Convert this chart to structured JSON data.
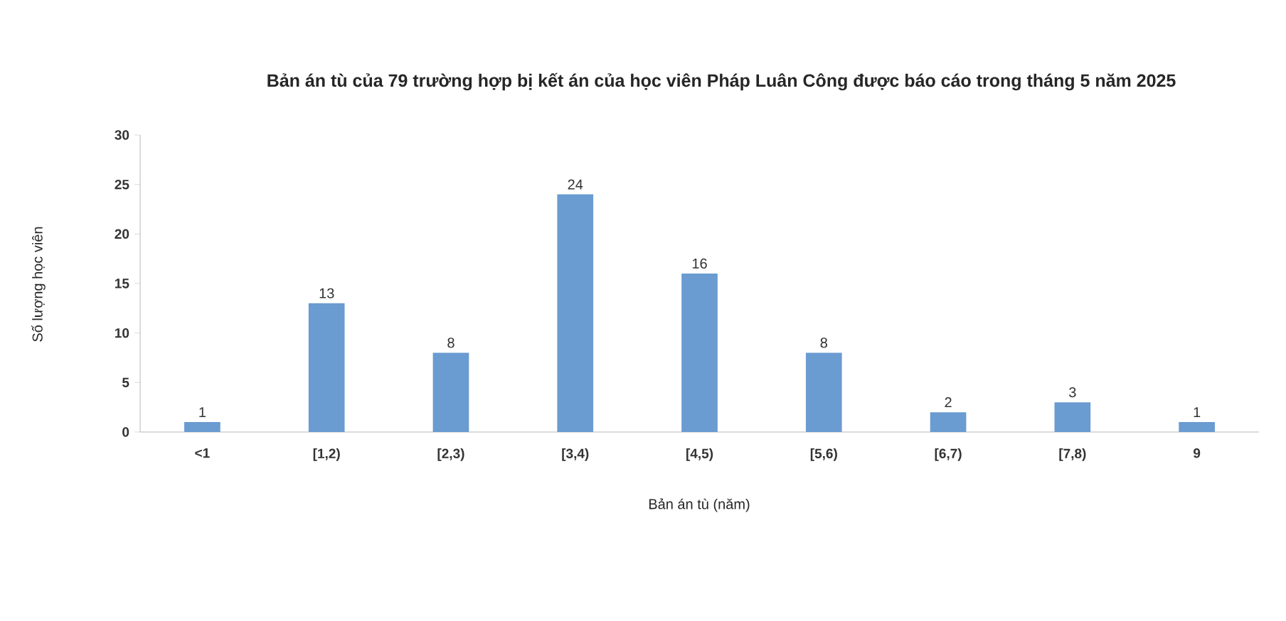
{
  "chart_data": {
    "type": "bar",
    "title": "Bản án tù của 79 trường hợp bị kết án của học viên Pháp Luân Công được báo cáo trong tháng 5 năm 2025",
    "xlabel": "Bản án tù (năm)",
    "ylabel": "Số lượng học viên",
    "categories": [
      "<1",
      "[1,2)",
      "[2,3)",
      "[3,4)",
      "[4,5)",
      "[5,6)",
      "[6,7)",
      "[7,8)",
      "9"
    ],
    "values": [
      1,
      13,
      8,
      24,
      16,
      8,
      2,
      3,
      1
    ],
    "color": "#6a9bd1",
    "ylim": [
      0,
      30
    ],
    "yticks": [
      0,
      5,
      10,
      15,
      20,
      25,
      30
    ],
    "data_labels": true
  }
}
